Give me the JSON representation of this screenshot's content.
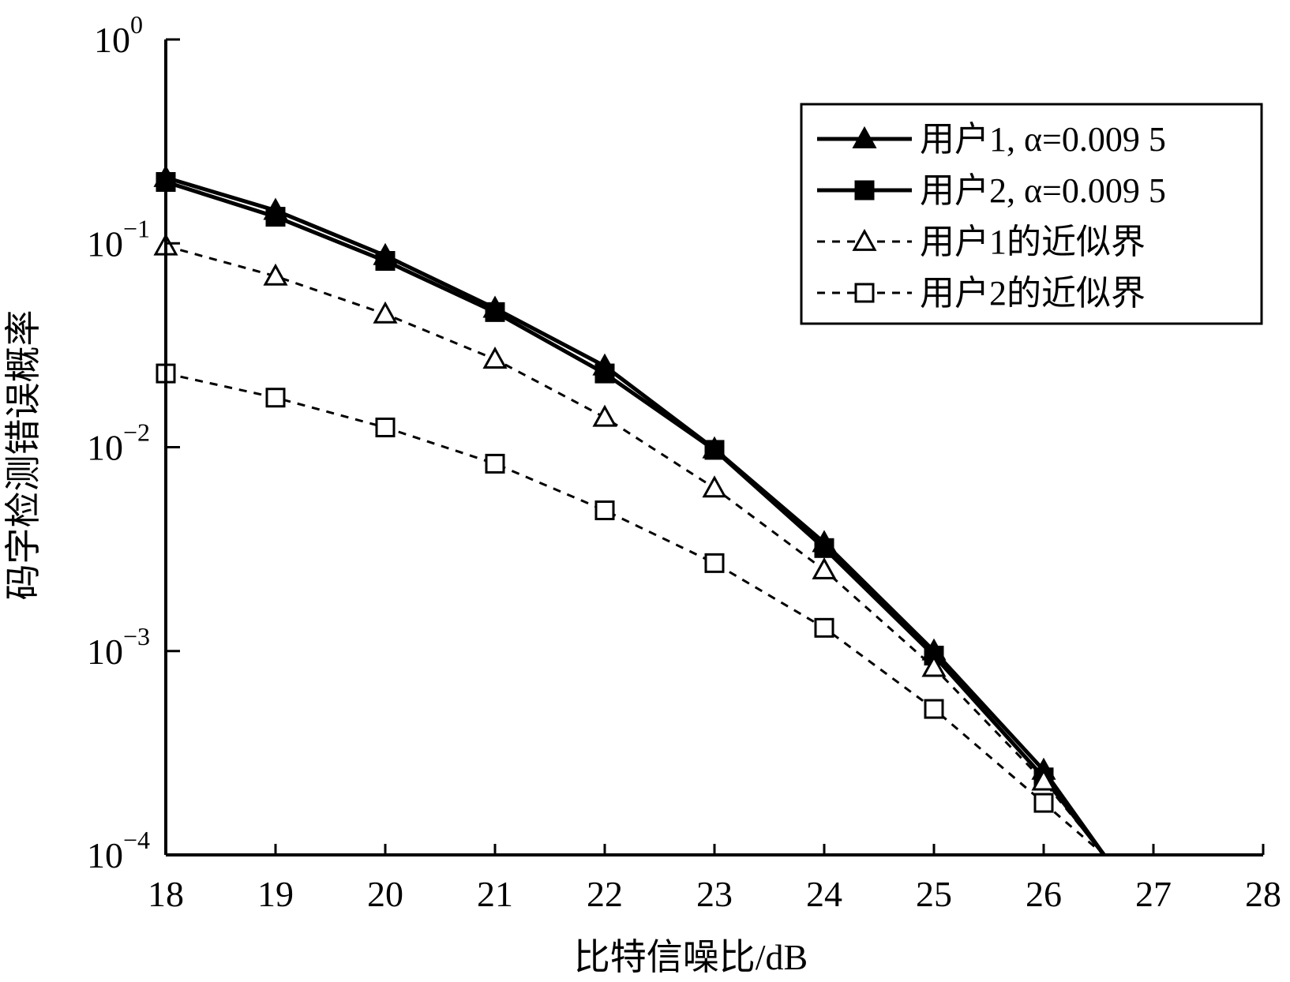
{
  "chart_data": {
    "type": "line",
    "xlabel": "比特信噪比/dB",
    "ylabel": "码字检测错误概率",
    "y_scale": "log",
    "xlim": [
      18,
      28
    ],
    "ylim": [
      0.0001,
      1
    ],
    "grid": false,
    "legend_position": "top-right",
    "x_ticks": [
      "18",
      "19",
      "20",
      "21",
      "22",
      "23",
      "24",
      "25",
      "26",
      "27",
      "28"
    ],
    "y_ticks": [
      {
        "base": "10",
        "exp": "0"
      },
      {
        "base": "10",
        "exp": "−1"
      },
      {
        "base": "10",
        "exp": "−2"
      },
      {
        "base": "10",
        "exp": "−3"
      },
      {
        "base": "10",
        "exp": "−4"
      }
    ],
    "series": [
      {
        "name": "用户1, α=0.009 5",
        "marker": "filled-triangle",
        "line": "solid",
        "color": "#000000",
        "x": [
          18,
          19,
          20,
          21,
          22,
          23,
          24,
          25,
          26,
          26.55
        ],
        "y": [
          0.21,
          0.145,
          0.087,
          0.048,
          0.025,
          0.0098,
          0.0034,
          0.001,
          0.00026,
          0.0001
        ]
      },
      {
        "name": "用户2, α=0.009 5",
        "marker": "filled-square",
        "line": "solid",
        "color": "#000000",
        "x": [
          18,
          19,
          20,
          21,
          22,
          23,
          24,
          25,
          26,
          26.55
        ],
        "y": [
          0.2,
          0.135,
          0.082,
          0.046,
          0.023,
          0.0097,
          0.0032,
          0.00095,
          0.00024,
          0.0001
        ]
      },
      {
        "name": "用户1的近似界",
        "marker": "open-triangle",
        "line": "dashed",
        "color": "#000000",
        "x": [
          18,
          19,
          20,
          21,
          22,
          23,
          24,
          25,
          26,
          26.55
        ],
        "y": [
          0.097,
          0.069,
          0.045,
          0.027,
          0.014,
          0.0063,
          0.0025,
          0.00083,
          0.00023,
          0.0001
        ]
      },
      {
        "name": "用户2的近似界",
        "marker": "open-square",
        "line": "dashed",
        "color": "#000000",
        "x": [
          18,
          19,
          20,
          21,
          22,
          23,
          24,
          25,
          26,
          26.55
        ],
        "y": [
          0.023,
          0.0175,
          0.0125,
          0.0083,
          0.0049,
          0.0027,
          0.0013,
          0.00052,
          0.00018,
          0.0001
        ]
      }
    ]
  }
}
